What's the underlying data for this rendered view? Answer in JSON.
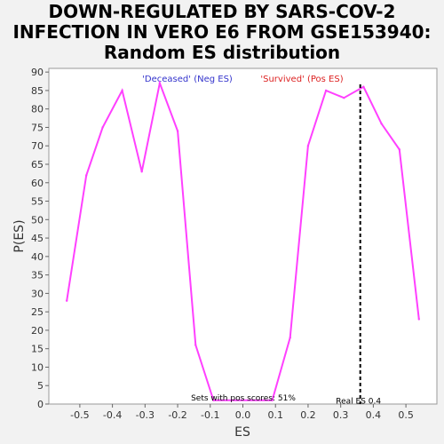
{
  "title_lines": [
    "DOWN-REGULATED BY SARS-COV-2",
    "INFECTION IN VERO E6 FROM GSE153940:",
    "Random ES distribution"
  ],
  "chart_data": {
    "type": "line",
    "xlabel": "ES",
    "ylabel": "P(ES)",
    "xlim": [
      -0.595,
      0.595
    ],
    "ylim": [
      0,
      91
    ],
    "x_ticks": [
      -0.5,
      -0.4,
      -0.3,
      -0.2,
      -0.1,
      0.0,
      0.1,
      0.2,
      0.3,
      0.4,
      0.5
    ],
    "x_tick_labels": [
      "-0.5",
      "-0.4",
      "-0.3",
      "-0.2",
      "-0.1",
      "0.0",
      "0.1",
      "0.2",
      "0.3",
      "0.4",
      "0.5"
    ],
    "y_ticks": [
      0,
      5,
      10,
      15,
      20,
      25,
      30,
      35,
      40,
      45,
      50,
      55,
      60,
      65,
      70,
      75,
      80,
      85,
      90
    ],
    "series": [
      {
        "color": "#ff40ff",
        "x": [
          -0.54,
          -0.48,
          -0.43,
          -0.37,
          -0.31,
          -0.255,
          -0.2,
          -0.145,
          -0.09,
          0.09,
          0.145,
          0.2,
          0.255,
          0.31,
          0.37,
          0.425,
          0.48,
          0.54
        ],
        "y": [
          28,
          62,
          75,
          85,
          63,
          87,
          74,
          16,
          1,
          1,
          18,
          70,
          85,
          83,
          86,
          76,
          69,
          23
        ]
      }
    ],
    "real_es": 0.36,
    "real_es_label": "Real ES 0.4",
    "annotations": {
      "neg_label": "'Deceased' (Neg ES)",
      "pos_label": "'Survived' (Pos ES)",
      "pos_scores": "Sets with pos scores: 51%"
    },
    "colors": {
      "line": "#ff40ff",
      "neg": "#3333cc",
      "pos": "#dd2222"
    },
    "grid": false,
    "legend": "none"
  }
}
